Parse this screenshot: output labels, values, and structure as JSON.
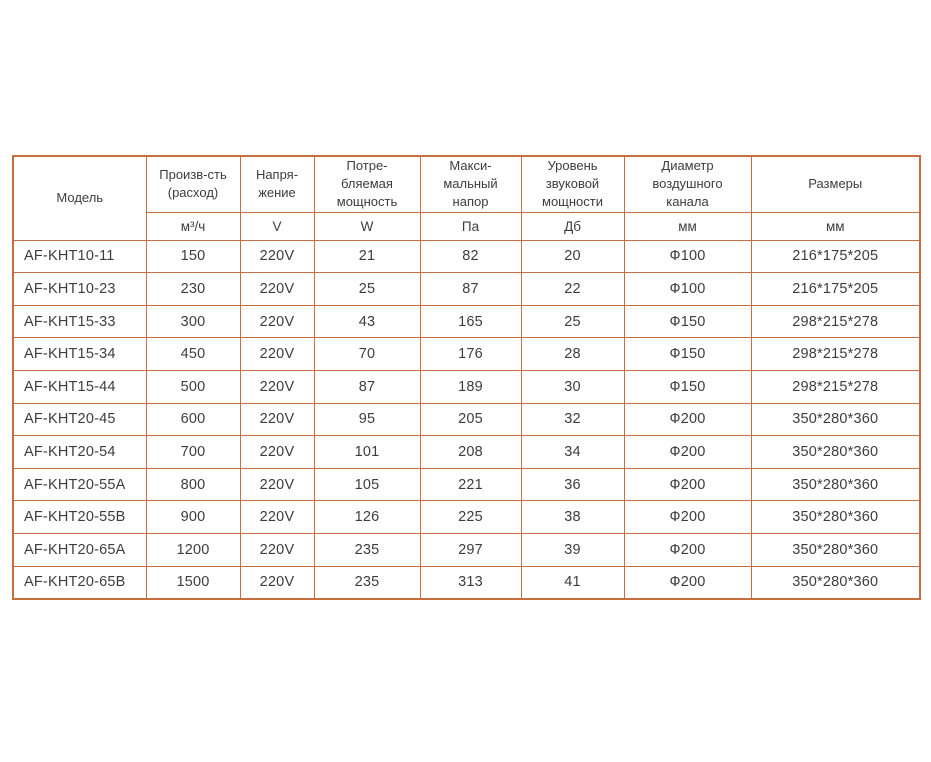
{
  "colors": {
    "border": "#c56f3e",
    "text": "#3d3d3d",
    "background": "#ffffff"
  },
  "chart_data": {
    "type": "table",
    "columns": [
      {
        "label": "Модель",
        "unit": null
      },
      {
        "label": "Произв-сть\n(расход)",
        "unit": "м³/ч"
      },
      {
        "label": "Напря-\nжение",
        "unit": "V"
      },
      {
        "label": "Потре-\nбляемая\nмощность",
        "unit": "W"
      },
      {
        "label": "Макси-\nмальный\nнапор",
        "unit": "Па"
      },
      {
        "label": "Уровень\nзвуковой\nмощности",
        "unit": "Дб"
      },
      {
        "label": "Диаметр\nвоздушного\nканала",
        "unit": "мм"
      },
      {
        "label": "Размеры",
        "unit": "мм"
      }
    ],
    "rows": [
      [
        "AF-KHT10-11",
        "150",
        "220V",
        "21",
        "82",
        "20",
        "Ф100",
        "216*175*205"
      ],
      [
        "AF-KHT10-23",
        "230",
        "220V",
        "25",
        "87",
        "22",
        "Ф100",
        "216*175*205"
      ],
      [
        "AF-KHT15-33",
        "300",
        "220V",
        "43",
        "165",
        "25",
        "Ф150",
        "298*215*278"
      ],
      [
        "AF-KHT15-34",
        "450",
        "220V",
        "70",
        "176",
        "28",
        "Ф150",
        "298*215*278"
      ],
      [
        "AF-KHT15-44",
        "500",
        "220V",
        "87",
        "189",
        "30",
        "Ф150",
        "298*215*278"
      ],
      [
        "AF-KHT20-45",
        "600",
        "220V",
        "95",
        "205",
        "32",
        "Ф200",
        "350*280*360"
      ],
      [
        "AF-KHT20-54",
        "700",
        "220V",
        "101",
        "208",
        "34",
        "Ф200",
        "350*280*360"
      ],
      [
        "AF-KHT20-55A",
        "800",
        "220V",
        "105",
        "221",
        "36",
        "Ф200",
        "350*280*360"
      ],
      [
        "AF-KHT20-55B",
        "900",
        "220V",
        "126",
        "225",
        "38",
        "Ф200",
        "350*280*360"
      ],
      [
        "AF-KHT20-65A",
        "1200",
        "220V",
        "235",
        "297",
        "39",
        "Ф200",
        "350*280*360"
      ],
      [
        "AF-KHT20-65B",
        "1500",
        "220V",
        "235",
        "313",
        "41",
        "Ф200",
        "350*280*360"
      ]
    ]
  }
}
